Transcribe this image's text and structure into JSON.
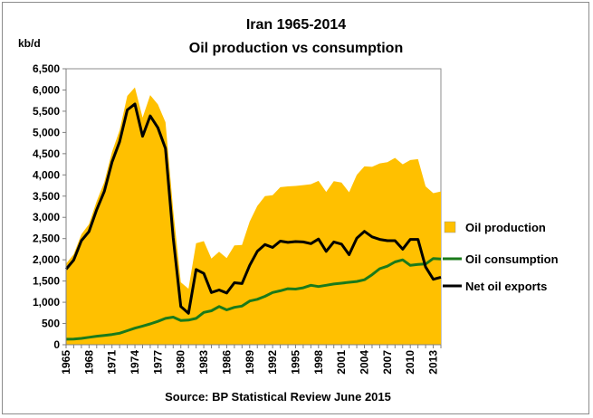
{
  "chart_data": {
    "type": "area",
    "title": "Iran 1965-2014",
    "subtitle": "Oil production vs consumption",
    "ylabel": "kb/d",
    "source": "Source: BP Statistical Review June 2015",
    "ylim": [
      0,
      6500
    ],
    "y_ticks": [
      "0",
      "500",
      "1,000",
      "1,500",
      "2,000",
      "2,500",
      "3,000",
      "3,500",
      "4,000",
      "4,500",
      "5,000",
      "5,500",
      "6,000",
      "6,500"
    ],
    "x_tick_labels": [
      "1965",
      "1968",
      "1971",
      "1974",
      "1977",
      "1980",
      "1983",
      "1986",
      "1989",
      "1992",
      "1995",
      "1998",
      "2001",
      "2004",
      "2007",
      "2010",
      "2013"
    ],
    "x": [
      1965,
      1966,
      1967,
      1968,
      1969,
      1970,
      1971,
      1972,
      1973,
      1974,
      1975,
      1976,
      1977,
      1978,
      1979,
      1980,
      1981,
      1982,
      1983,
      1984,
      1985,
      1986,
      1987,
      1988,
      1989,
      1990,
      1991,
      1992,
      1993,
      1994,
      1995,
      1996,
      1997,
      1998,
      1999,
      2000,
      2001,
      2002,
      2003,
      2004,
      2005,
      2006,
      2007,
      2008,
      2009,
      2010,
      2011,
      2012,
      2013,
      2014
    ],
    "legend_position": "right",
    "series": [
      {
        "name": "Oil production",
        "kind": "area",
        "color": "#ffc000",
        "values": [
          1910,
          2130,
          2600,
          2840,
          3380,
          3830,
          4540,
          5050,
          5860,
          6060,
          5350,
          5880,
          5660,
          5240,
          3170,
          1470,
          1320,
          2390,
          2440,
          2030,
          2190,
          2040,
          2340,
          2350,
          2900,
          3270,
          3500,
          3520,
          3710,
          3730,
          3740,
          3760,
          3780,
          3860,
          3600,
          3850,
          3820,
          3590,
          4000,
          4200,
          4190,
          4270,
          4300,
          4400,
          4250,
          4350,
          4370,
          3730,
          3570,
          3610
        ]
      },
      {
        "name": "Oil consumption",
        "kind": "line",
        "color": "#1a7a1a",
        "values": [
          130,
          135,
          150,
          175,
          200,
          220,
          240,
          270,
          330,
          390,
          440,
          490,
          550,
          620,
          650,
          570,
          580,
          620,
          760,
          800,
          900,
          820,
          880,
          910,
          1030,
          1070,
          1140,
          1230,
          1270,
          1320,
          1310,
          1340,
          1400,
          1370,
          1400,
          1430,
          1450,
          1470,
          1490,
          1530,
          1650,
          1790,
          1850,
          1950,
          2000,
          1870,
          1890,
          1900,
          2030,
          2020
        ]
      },
      {
        "name": "Net oil exports",
        "kind": "line",
        "color": "#000000",
        "values": [
          1780,
          1995,
          2450,
          2665,
          3180,
          3610,
          4300,
          4780,
          5530,
          5670,
          4910,
          5390,
          5110,
          4620,
          2520,
          900,
          740,
          1770,
          1680,
          1230,
          1290,
          1220,
          1460,
          1440,
          1870,
          2200,
          2360,
          2290,
          2440,
          2410,
          2430,
          2420,
          2380,
          2490,
          2200,
          2420,
          2370,
          2120,
          2510,
          2670,
          2540,
          2480,
          2450,
          2450,
          2250,
          2480,
          2480,
          1830,
          1540,
          1590
        ]
      }
    ]
  }
}
